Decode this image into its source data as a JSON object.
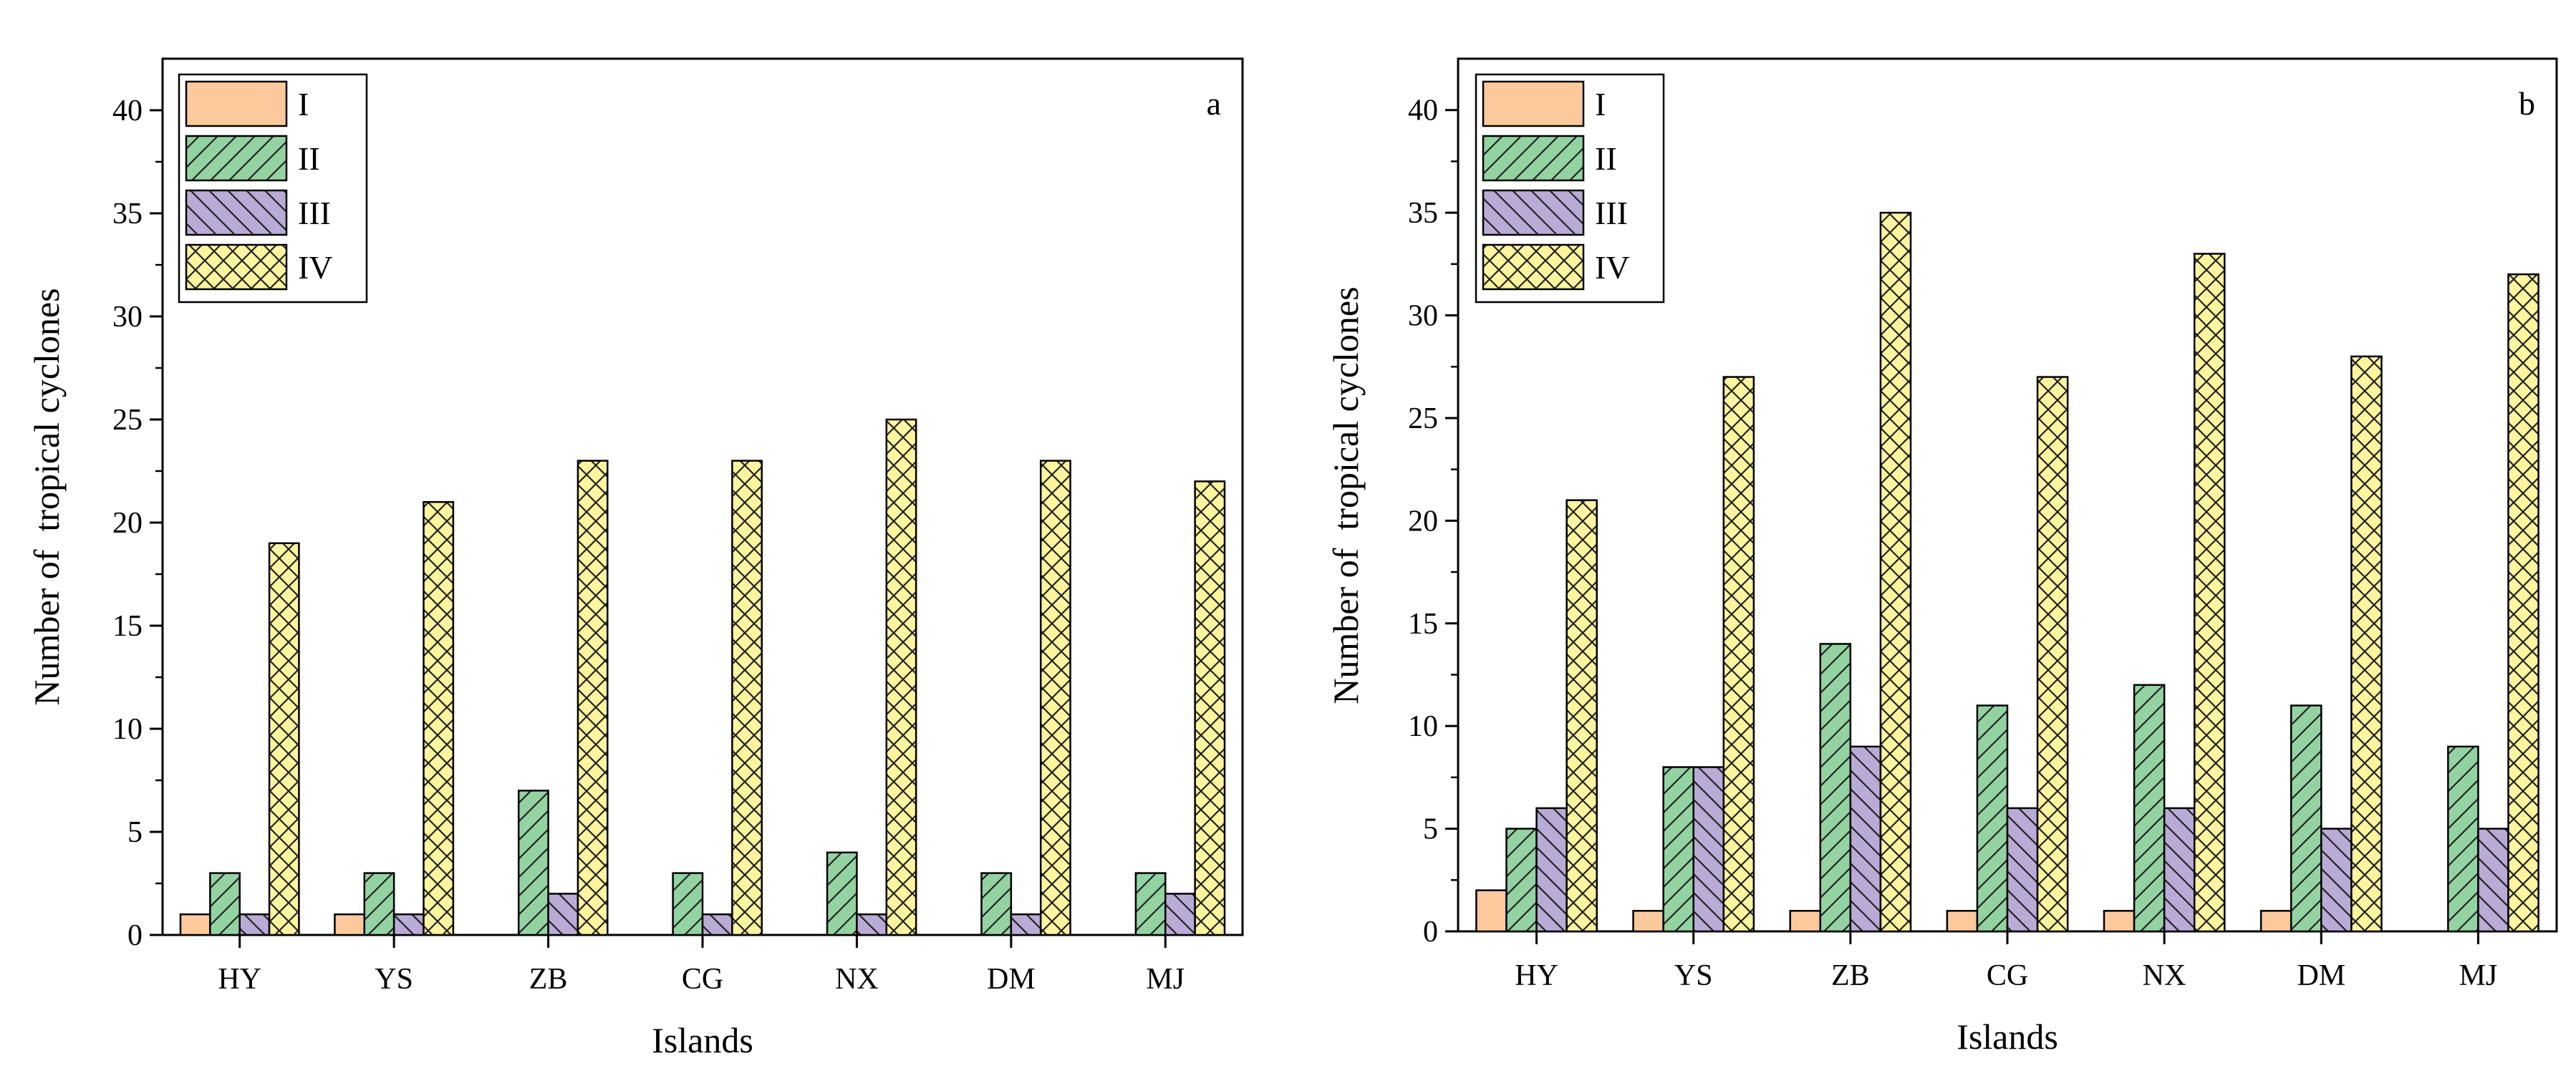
{
  "figure": {
    "palette": {
      "I": "#FCC99C",
      "II": "#93D3A2",
      "III": "#B9AAD6",
      "IV": "#FDF49F"
    },
    "patterns": {
      "I": "none",
      "II": "diagonal-up",
      "III": "diagonal-down",
      "IV": "crosshatch"
    }
  },
  "chart_data": [
    {
      "type": "bar",
      "panel_label": "a",
      "title": "",
      "xlabel": "Islands",
      "ylabel": "Number of  tropical cyclones",
      "ylim": [
        0,
        42.5
      ],
      "yticks": [
        0,
        5,
        10,
        15,
        20,
        25,
        30,
        35,
        40
      ],
      "legend_position": "top-left",
      "categories": [
        "HY",
        "YS",
        "ZB",
        "CG",
        "NX",
        "DM",
        "MJ"
      ],
      "series": [
        {
          "key": "I",
          "name": "I",
          "values": [
            1,
            1,
            0,
            0,
            0,
            0,
            0
          ]
        },
        {
          "key": "II",
          "name": "II",
          "values": [
            3,
            3,
            7,
            3,
            4,
            3,
            3
          ]
        },
        {
          "key": "III",
          "name": "III",
          "values": [
            1,
            1,
            2,
            1,
            1,
            1,
            2
          ]
        },
        {
          "key": "IV",
          "name": "IV",
          "values": [
            19,
            21,
            23,
            23,
            25,
            23,
            22
          ]
        }
      ]
    },
    {
      "type": "bar",
      "panel_label": "b",
      "title": "",
      "xlabel": "Islands",
      "ylabel": "Number of  tropical cyclones",
      "ylim": [
        0,
        42.5
      ],
      "yticks": [
        0,
        5,
        10,
        15,
        20,
        25,
        30,
        35,
        40
      ],
      "legend_position": "top-left",
      "categories": [
        "HY",
        "YS",
        "ZB",
        "CG",
        "NX",
        "DM",
        "MJ"
      ],
      "series": [
        {
          "key": "I",
          "name": "I",
          "values": [
            2,
            1,
            1,
            1,
            1,
            1,
            0
          ]
        },
        {
          "key": "II",
          "name": "II",
          "values": [
            5,
            8,
            14,
            11,
            12,
            11,
            9
          ]
        },
        {
          "key": "III",
          "name": "III",
          "values": [
            6,
            8,
            9,
            6,
            6,
            5,
            5
          ]
        },
        {
          "key": "IV",
          "name": "IV",
          "values": [
            21,
            27,
            35,
            27,
            33,
            28,
            32
          ]
        }
      ]
    }
  ]
}
